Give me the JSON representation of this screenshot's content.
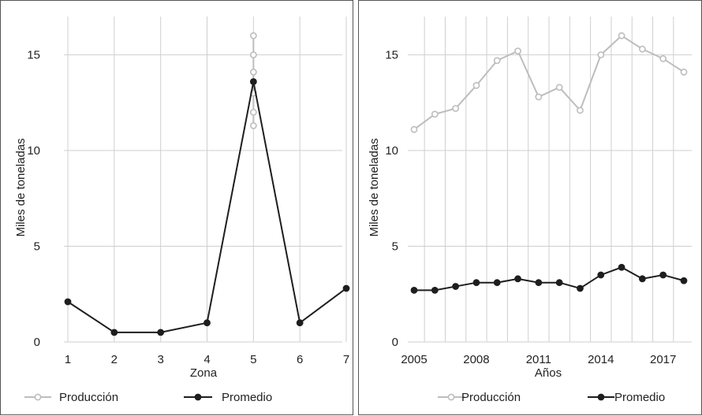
{
  "colors": {
    "produccion": "#bdbdbd",
    "promedio": "#1e1e1e",
    "grid": "#cfcfcf"
  },
  "chart_data": [
    {
      "type": "line",
      "xlabel": "Zona",
      "ylabel": "Miles de toneladas",
      "ylim": [
        0,
        17
      ],
      "yticks": [
        0,
        5,
        10,
        15
      ],
      "x_tick_labels": [
        "1",
        "2",
        "3",
        "4",
        "5",
        "6",
        "7"
      ],
      "grid": true,
      "legend": "bottom",
      "series": [
        {
          "name": "Producción",
          "points": [
            [
              5,
              16.0
            ],
            [
              5,
              15.0
            ],
            [
              5,
              14.1
            ],
            [
              5,
              13.0
            ],
            [
              5,
              12.0
            ],
            [
              5,
              11.3
            ]
          ]
        },
        {
          "name": "Promedio",
          "points": [
            [
              1,
              2.1
            ],
            [
              2,
              0.5
            ],
            [
              3,
              0.5
            ],
            [
              4,
              1.0
            ],
            [
              5,
              13.6
            ],
            [
              6,
              1.0
            ],
            [
              7,
              2.8
            ]
          ]
        }
      ]
    },
    {
      "type": "line",
      "xlabel": "Años",
      "ylabel": "Miles de toneladas",
      "ylim": [
        0,
        17
      ],
      "yticks": [
        0,
        5,
        10,
        15
      ],
      "x_tick_labels": [
        "2005",
        "2008",
        "2011",
        "2014",
        "2017"
      ],
      "grid": true,
      "legend": "bottom",
      "series": [
        {
          "name": "Producción",
          "points": [
            [
              2005,
              11.1
            ],
            [
              2006,
              11.9
            ],
            [
              2007,
              12.2
            ],
            [
              2008,
              13.4
            ],
            [
              2009,
              14.7
            ],
            [
              2010,
              15.2
            ],
            [
              2011,
              12.8
            ],
            [
              2012,
              13.3
            ],
            [
              2013,
              12.1
            ],
            [
              2014,
              15.0
            ],
            [
              2015,
              16.0
            ],
            [
              2016,
              15.3
            ],
            [
              2017,
              14.8
            ],
            [
              2018,
              14.1
            ]
          ]
        },
        {
          "name": "Promedio",
          "points": [
            [
              2005,
              2.7
            ],
            [
              2006,
              2.7
            ],
            [
              2007,
              2.9
            ],
            [
              2008,
              3.1
            ],
            [
              2009,
              3.1
            ],
            [
              2010,
              3.3
            ],
            [
              2011,
              3.1
            ],
            [
              2012,
              3.1
            ],
            [
              2013,
              2.8
            ],
            [
              2014,
              3.5
            ],
            [
              2015,
              3.9
            ],
            [
              2016,
              3.3
            ],
            [
              2017,
              3.5
            ],
            [
              2018,
              3.2
            ]
          ]
        }
      ]
    }
  ]
}
